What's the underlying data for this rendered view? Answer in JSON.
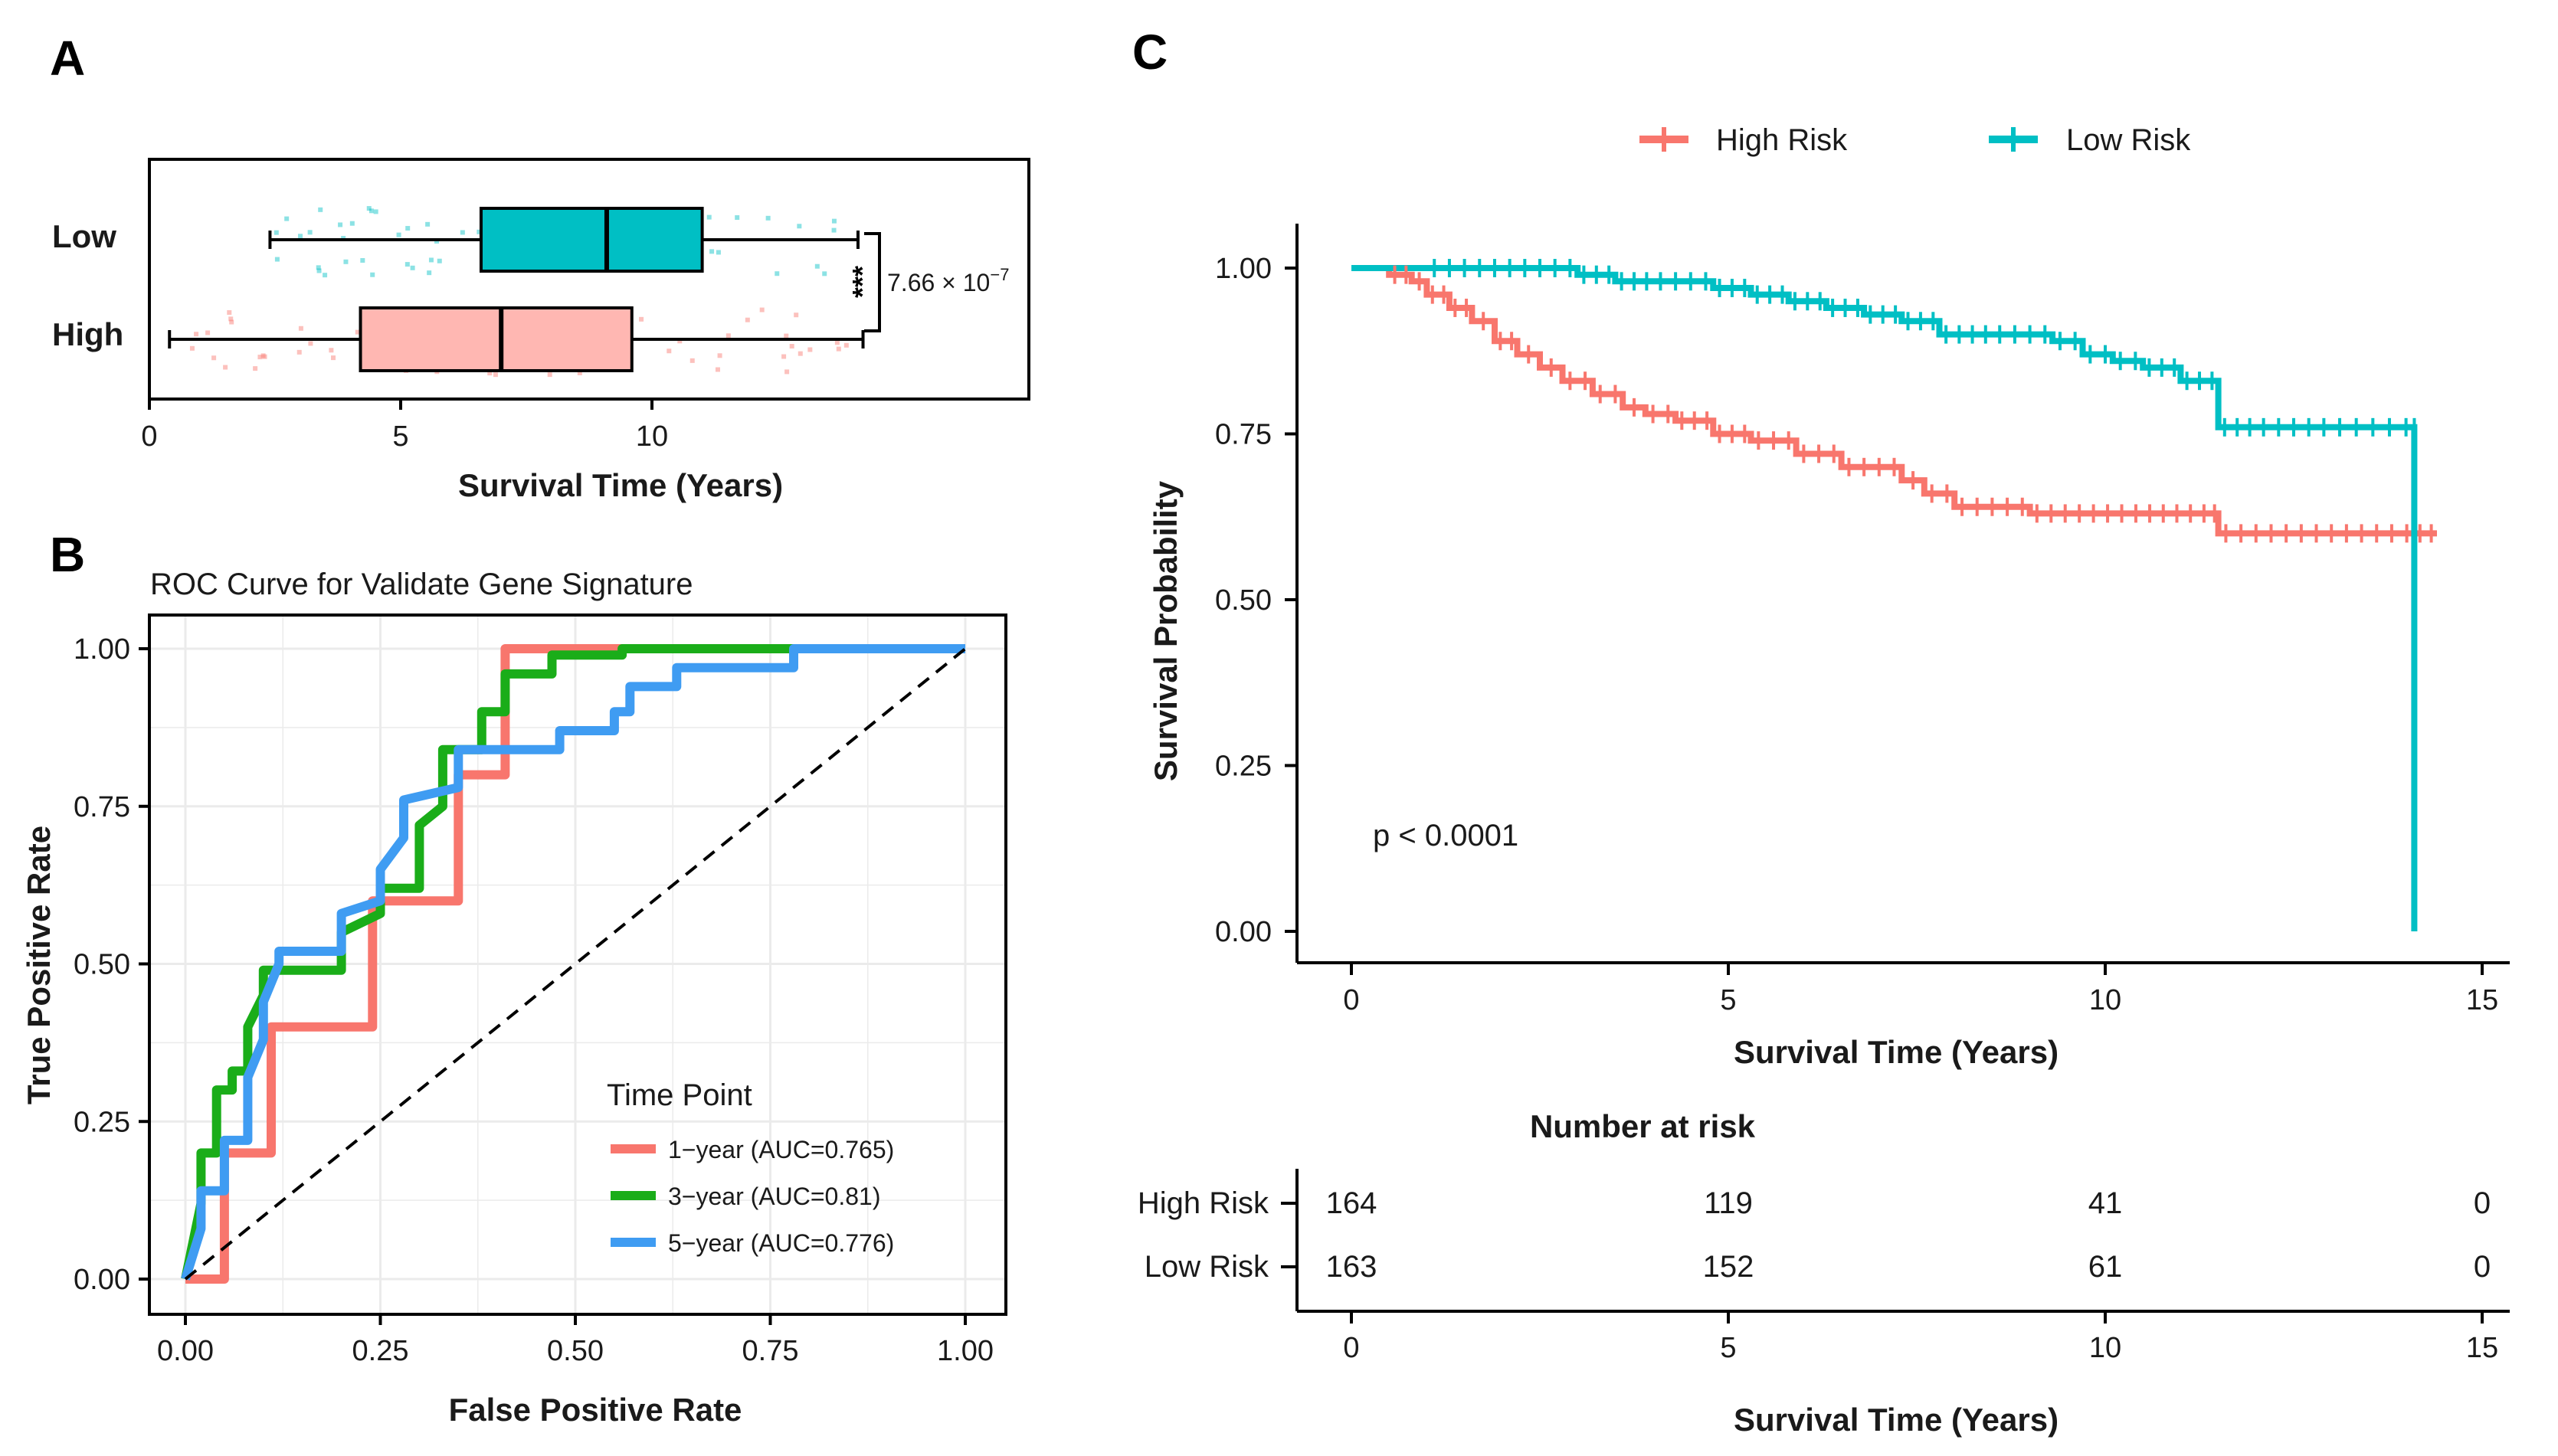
{
  "colors": {
    "high": "#f8766d",
    "low": "#00bfc4",
    "roc1": "#f8766d",
    "roc3": "#1aad19",
    "roc5": "#3f9cf2",
    "grid": "#ebebeb"
  },
  "chart_data": [
    {
      "id": "A",
      "type": "boxplot",
      "panel_label": "A",
      "xlabel": "Survival Time (Years)",
      "xlim": [
        0,
        17.5
      ],
      "xticks": [
        0,
        5,
        10
      ],
      "categories": [
        "Low",
        "High"
      ],
      "boxes": [
        {
          "name": "Low",
          "whisker_low": 2.4,
          "q1": 6.6,
          "median": 9.1,
          "q3": 11.0,
          "whisker_high": 14.1
        },
        {
          "name": "High",
          "whisker_low": 0.4,
          "q1": 4.2,
          "median": 7.0,
          "q3": 9.6,
          "whisker_high": 14.2
        }
      ],
      "significance": "***",
      "p_value_base": "7.66 × 10",
      "p_value_exp": "−7"
    },
    {
      "id": "B",
      "type": "line",
      "panel_label": "B",
      "title": "ROC Curve for Validate Gene Signature",
      "xlabel": "False Positive Rate",
      "ylabel": "True Positive Rate",
      "xlim": [
        0,
        1
      ],
      "ylim": [
        0,
        1
      ],
      "xticks": [
        "0.00",
        "0.25",
        "0.50",
        "0.75",
        "1.00"
      ],
      "yticks": [
        "0.00",
        "0.25",
        "0.50",
        "0.75",
        "1.00"
      ],
      "legend_title": "Time Point",
      "series": [
        {
          "name": "1−year (AUC=0.765)",
          "x": [
            0,
            0.05,
            0.05,
            0.11,
            0.11,
            0.24,
            0.24,
            0.35,
            0.35,
            0.41,
            0.41,
            1.0
          ],
          "y": [
            0,
            0,
            0.2,
            0.2,
            0.4,
            0.4,
            0.6,
            0.6,
            0.8,
            0.8,
            1.0,
            1.0
          ]
        },
        {
          "name": "3−year (AUC=0.81)",
          "x": [
            0,
            0.02,
            0.02,
            0.04,
            0.04,
            0.06,
            0.06,
            0.08,
            0.08,
            0.1,
            0.1,
            0.2,
            0.2,
            0.25,
            0.25,
            0.3,
            0.3,
            0.33,
            0.33,
            0.38,
            0.38,
            0.41,
            0.41,
            0.47,
            0.47,
            0.56,
            0.56,
            0.8,
            0.8,
            1.0
          ],
          "y": [
            0,
            0.12,
            0.2,
            0.2,
            0.3,
            0.3,
            0.33,
            0.33,
            0.4,
            0.45,
            0.49,
            0.49,
            0.55,
            0.58,
            0.62,
            0.62,
            0.72,
            0.75,
            0.84,
            0.84,
            0.9,
            0.9,
            0.96,
            0.96,
            0.99,
            0.99,
            1.0,
            1.0,
            1.0,
            1.0
          ]
        },
        {
          "name": "5−year (AUC=0.776)",
          "x": [
            0,
            0.02,
            0.02,
            0.05,
            0.05,
            0.08,
            0.08,
            0.1,
            0.1,
            0.12,
            0.12,
            0.2,
            0.2,
            0.25,
            0.25,
            0.28,
            0.28,
            0.35,
            0.35,
            0.48,
            0.48,
            0.55,
            0.55,
            0.57,
            0.57,
            0.63,
            0.63,
            0.78,
            0.78,
            0.83,
            0.83,
            1.0
          ],
          "y": [
            0,
            0.08,
            0.14,
            0.14,
            0.22,
            0.22,
            0.32,
            0.38,
            0.44,
            0.5,
            0.52,
            0.52,
            0.58,
            0.6,
            0.65,
            0.7,
            0.76,
            0.78,
            0.84,
            0.84,
            0.87,
            0.87,
            0.9,
            0.9,
            0.94,
            0.94,
            0.97,
            0.97,
            1.0,
            1.0,
            1.0,
            1.0
          ]
        },
        {
          "name": "reference",
          "x": [
            0,
            1
          ],
          "y": [
            0,
            1
          ]
        }
      ]
    },
    {
      "id": "C",
      "type": "line",
      "panel_label": "C",
      "title": "",
      "xlabel": "Survival Time (Years)",
      "ylabel": "Survival Probability",
      "xlim": [
        -0.7,
        15.1
      ],
      "ylim": [
        -0.05,
        1.05
      ],
      "xticks": [
        0,
        5,
        10,
        15
      ],
      "yticks": [
        "0.00",
        "0.25",
        "0.50",
        "0.75",
        "1.00"
      ],
      "pvalue_text": "p < 0.0001",
      "series": [
        {
          "name": "High Risk",
          "x": [
            0,
            0.5,
            0.8,
            1.0,
            1.3,
            1.6,
            1.9,
            2.2,
            2.5,
            2.8,
            3.2,
            3.6,
            3.9,
            4.3,
            4.8,
            5.3,
            5.9,
            6.5,
            7.3,
            7.6,
            8.0,
            9.0,
            10.5,
            11.4,
            11.5,
            12.5,
            13.3,
            14.1,
            14.4
          ],
          "y": [
            1.0,
            0.99,
            0.98,
            0.96,
            0.94,
            0.92,
            0.89,
            0.87,
            0.85,
            0.83,
            0.81,
            0.79,
            0.78,
            0.77,
            0.75,
            0.74,
            0.72,
            0.7,
            0.68,
            0.66,
            0.64,
            0.63,
            0.63,
            0.63,
            0.6,
            0.6,
            0.6,
            0.6,
            0.6
          ]
        },
        {
          "name": "Low Risk",
          "x": [
            0,
            1.0,
            2.4,
            3.0,
            3.5,
            4.0,
            4.8,
            5.3,
            5.8,
            6.3,
            6.8,
            7.3,
            7.8,
            8.5,
            9.3,
            9.7,
            10.1,
            10.5,
            11.0,
            11.5,
            12.0,
            13.0,
            14.1,
            14.1
          ],
          "y": [
            1.0,
            1.0,
            1.0,
            0.99,
            0.98,
            0.98,
            0.97,
            0.96,
            0.95,
            0.94,
            0.93,
            0.92,
            0.9,
            0.9,
            0.89,
            0.87,
            0.86,
            0.85,
            0.83,
            0.76,
            0.76,
            0.76,
            0.76,
            0.0
          ]
        }
      ],
      "number_at_risk": {
        "title": "Number at risk",
        "xlabel": "Survival Time (Years)",
        "times": [
          0,
          5,
          10,
          15
        ],
        "rows": [
          {
            "name": "High Risk",
            "values": [
              "164",
              "119",
              "41",
              "0"
            ]
          },
          {
            "name": "Low Risk",
            "values": [
              "163",
              "152",
              "61",
              "0"
            ]
          }
        ]
      }
    }
  ]
}
